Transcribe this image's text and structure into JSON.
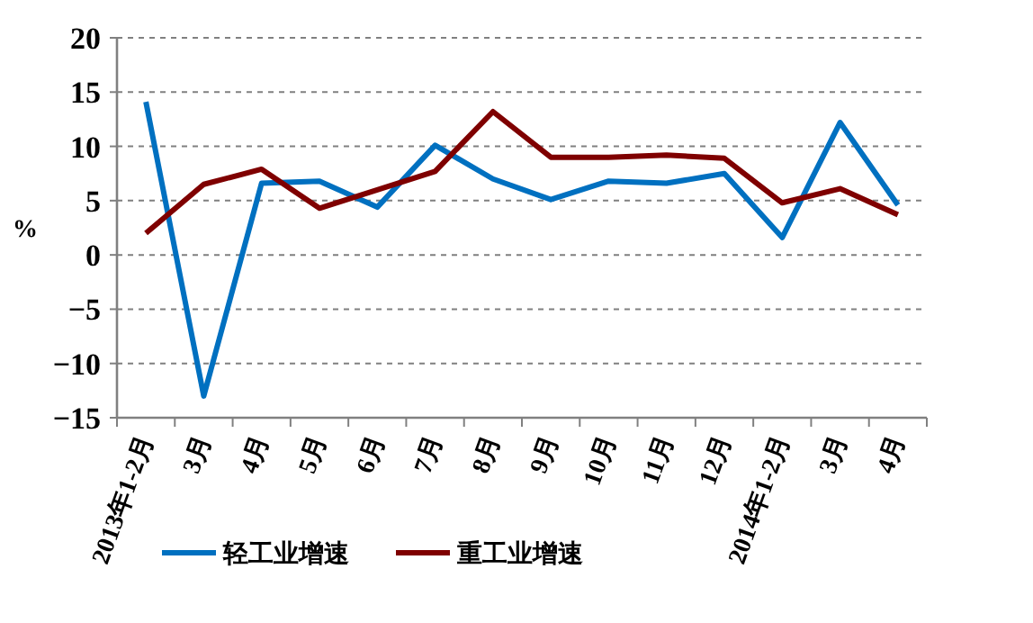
{
  "chart_data": {
    "type": "line",
    "ylabel": "%",
    "categories": [
      "2013年1-2月",
      "3月",
      "4月",
      "5月",
      "6月",
      "7月",
      "8月",
      "9月",
      "10月",
      "11月",
      "12月",
      "2014年1-2月",
      "3月",
      "4月"
    ],
    "series": [
      {
        "name": "轻工业增速",
        "color": "#0070c0",
        "values": [
          14.1,
          -13,
          6.6,
          6.8,
          4.4,
          10.1,
          7.0,
          5.1,
          6.8,
          6.6,
          7.5,
          1.6,
          12.2,
          4.6
        ]
      },
      {
        "name": "重工业增速",
        "color": "#7f0000",
        "values": [
          2.0,
          6.5,
          7.9,
          4.3,
          6.0,
          7.7,
          13.2,
          9.0,
          9.0,
          9.2,
          8.9,
          4.8,
          6.1,
          3.7
        ]
      }
    ],
    "ylim": [
      -15,
      20
    ],
    "yticks": [
      -15,
      -10,
      -5,
      0,
      5,
      10,
      15,
      20
    ],
    "grid": "y",
    "legend": "bottom"
  }
}
